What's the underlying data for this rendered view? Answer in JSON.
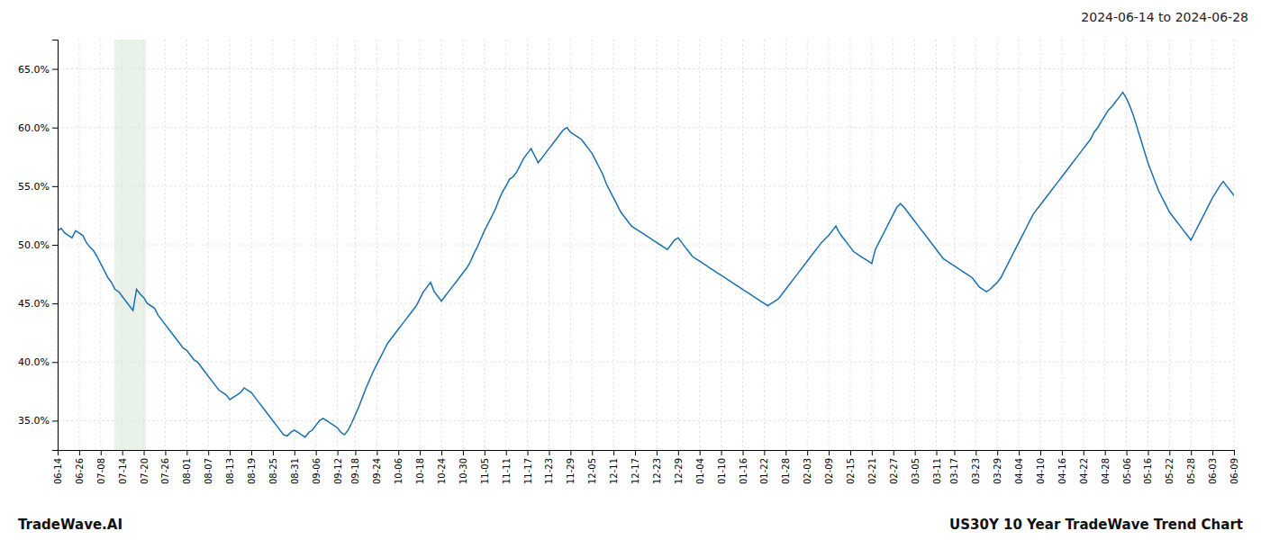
{
  "chart_data": {
    "type": "line",
    "title": "2024-06-14 to 2024-06-28",
    "annotations": [
      "TradeWave.AI",
      "US30Y 10 Year TradeWave Trend Chart"
    ],
    "color": "#1a6faf",
    "grid": true,
    "shade": {
      "start": 15.744,
      "end": 24.6,
      "color": "#d8ead8"
    },
    "ylim": [
      0.325,
      0.675
    ],
    "yticks": [
      {
        "value": 0.35,
        "label": "35.0%"
      },
      {
        "value": 0.4,
        "label": "40.0%"
      },
      {
        "value": 0.45,
        "label": "45.0%"
      },
      {
        "value": 0.5,
        "label": "50.0%"
      },
      {
        "value": 0.55,
        "label": "55.0%"
      },
      {
        "value": 0.6,
        "label": "60.0%"
      },
      {
        "value": 0.65,
        "label": "65.0%"
      }
    ],
    "categories": [
      "06-14",
      null,
      null,
      null,
      null,
      null,
      "06-26",
      null,
      null,
      null,
      null,
      null,
      "07-08",
      null,
      null,
      null,
      null,
      null,
      "07-14",
      null,
      null,
      null,
      null,
      null,
      "07-20",
      null,
      null,
      null,
      null,
      null,
      "07-26",
      null,
      null,
      null,
      null,
      null,
      "08-01",
      null,
      null,
      null,
      null,
      null,
      "08-07",
      null,
      null,
      null,
      null,
      null,
      "08-13",
      null,
      null,
      null,
      null,
      null,
      "08-19",
      null,
      null,
      null,
      null,
      null,
      "08-25",
      null,
      null,
      null,
      null,
      null,
      "08-31",
      null,
      null,
      null,
      null,
      null,
      "09-06",
      null,
      null,
      null,
      null,
      null,
      "09-12",
      null,
      null,
      null,
      null,
      "09-18",
      null,
      null,
      null,
      null,
      null,
      "09-24",
      null,
      null,
      null,
      null,
      null,
      "10-06",
      null,
      null,
      null,
      null,
      null,
      "10-18",
      null,
      null,
      null,
      null,
      null,
      "10-24",
      null,
      null,
      null,
      null,
      null,
      "10-30",
      null,
      null,
      null,
      null,
      null,
      "11-05",
      null,
      null,
      null,
      null,
      null,
      "11-11",
      null,
      null,
      null,
      null,
      null,
      "11-17",
      null,
      null,
      null,
      null,
      null,
      "11-23",
      null,
      null,
      null,
      null,
      null,
      "11-29",
      null,
      null,
      null,
      null,
      null,
      "12-05",
      null,
      null,
      null,
      null,
      null,
      "12-11",
      null,
      null,
      null,
      null,
      null,
      "12-17",
      null,
      null,
      null,
      null,
      null,
      "12-23",
      null,
      null,
      null,
      null,
      null,
      "12-29",
      null,
      null,
      null,
      null,
      null,
      "01-04",
      null,
      null,
      null,
      null,
      null,
      "01-10",
      null,
      null,
      null,
      null,
      null,
      "01-16",
      null,
      null,
      null,
      null,
      null,
      "01-22",
      null,
      null,
      null,
      null,
      null,
      "01-28",
      null,
      null,
      null,
      null,
      null,
      "02-03",
      null,
      null,
      null,
      null,
      null,
      "02-09",
      null,
      null,
      null,
      null,
      null,
      "02-15",
      null,
      null,
      null,
      null,
      null,
      "02-21",
      null,
      null,
      null,
      null,
      null,
      "02-27",
      null,
      null,
      null,
      null,
      null,
      "03-05",
      null,
      null,
      null,
      null,
      null,
      "03-11",
      null,
      null,
      null,
      null,
      "03-17",
      null,
      null,
      null,
      null,
      null,
      "03-23",
      null,
      null,
      null,
      null,
      null,
      "03-29",
      null,
      null,
      null,
      null,
      null,
      "04-04",
      null,
      null,
      null,
      null,
      null,
      "04-10",
      null,
      null,
      null,
      null,
      null,
      "04-16",
      null,
      null,
      null,
      null,
      null,
      "04-22",
      null,
      null,
      null,
      null,
      null,
      "04-28",
      null,
      null,
      null,
      null,
      null,
      "05-06",
      null,
      null,
      null,
      null,
      null,
      "05-16",
      null,
      null,
      null,
      null,
      null,
      "05-22",
      null,
      null,
      null,
      null,
      null,
      "05-28",
      null,
      null,
      null,
      null,
      null,
      "06-03",
      null,
      null,
      null,
      null,
      null,
      "06-09"
    ],
    "values": [
      0.512,
      0.514,
      0.51,
      0.508,
      0.506,
      0.512,
      0.51,
      0.508,
      0.502,
      0.498,
      0.495,
      0.49,
      0.484,
      0.478,
      0.472,
      0.468,
      0.462,
      0.46,
      0.456,
      0.452,
      0.448,
      0.444,
      0.462,
      0.458,
      0.455,
      0.45,
      0.448,
      0.446,
      0.44,
      0.436,
      0.432,
      0.428,
      0.424,
      0.42,
      0.416,
      0.412,
      0.41,
      0.406,
      0.402,
      0.4,
      0.396,
      0.392,
      0.388,
      0.384,
      0.38,
      0.376,
      0.374,
      0.372,
      0.368,
      0.37,
      0.372,
      0.374,
      0.378,
      0.376,
      0.374,
      0.37,
      0.366,
      0.362,
      0.358,
      0.354,
      0.35,
      0.346,
      0.342,
      0.338,
      0.337,
      0.34,
      0.342,
      0.34,
      0.338,
      0.336,
      0.34,
      0.342,
      0.346,
      0.35,
      0.352,
      0.35,
      0.348,
      0.346,
      0.344,
      0.34,
      0.338,
      0.342,
      0.348,
      0.355,
      0.362,
      0.37,
      0.378,
      0.385,
      0.392,
      0.398,
      0.404,
      0.41,
      0.416,
      0.42,
      0.424,
      0.428,
      0.432,
      0.436,
      0.44,
      0.444,
      0.448,
      0.454,
      0.46,
      0.464,
      0.468,
      0.46,
      0.456,
      0.452,
      0.456,
      0.46,
      0.464,
      0.468,
      0.472,
      0.476,
      0.48,
      0.485,
      0.492,
      0.498,
      0.505,
      0.512,
      0.518,
      0.524,
      0.53,
      0.538,
      0.545,
      0.55,
      0.556,
      0.558,
      0.562,
      0.568,
      0.574,
      0.578,
      0.582,
      0.576,
      0.57,
      0.574,
      0.578,
      0.582,
      0.586,
      0.59,
      0.594,
      0.598,
      0.6,
      0.596,
      0.594,
      0.592,
      0.59,
      0.586,
      0.582,
      0.578,
      0.572,
      0.566,
      0.56,
      0.552,
      0.546,
      0.54,
      0.534,
      0.528,
      0.524,
      0.52,
      0.516,
      0.514,
      0.512,
      0.51,
      0.508,
      0.506,
      0.504,
      0.502,
      0.5,
      0.498,
      0.496,
      0.5,
      0.504,
      0.506,
      0.502,
      0.498,
      0.494,
      0.49,
      0.488,
      0.486,
      0.484,
      0.482,
      0.48,
      0.478,
      0.476,
      0.474,
      0.472,
      0.47,
      0.468,
      0.466,
      0.464,
      0.462,
      0.46,
      0.458,
      0.456,
      0.454,
      0.452,
      0.45,
      0.448,
      0.45,
      0.452,
      0.454,
      0.458,
      0.462,
      0.466,
      0.47,
      0.474,
      0.478,
      0.482,
      0.486,
      0.49,
      0.494,
      0.498,
      0.502,
      0.505,
      0.508,
      0.512,
      0.516,
      0.51,
      0.506,
      0.502,
      0.498,
      0.494,
      0.492,
      0.49,
      0.488,
      0.486,
      0.484,
      0.496,
      0.502,
      0.508,
      0.514,
      0.52,
      0.526,
      0.532,
      0.535,
      0.532,
      0.528,
      0.524,
      0.52,
      0.516,
      0.512,
      0.508,
      0.504,
      0.5,
      0.496,
      0.492,
      0.488,
      0.486,
      0.484,
      0.482,
      0.48,
      0.478,
      0.476,
      0.474,
      0.472,
      0.468,
      0.464,
      0.462,
      0.46,
      0.462,
      0.465,
      0.468,
      0.472,
      0.478,
      0.484,
      0.49,
      0.496,
      0.502,
      0.508,
      0.514,
      0.52,
      0.526,
      0.53,
      0.534,
      0.538,
      0.542,
      0.546,
      0.55,
      0.554,
      0.558,
      0.562,
      0.566,
      0.57,
      0.574,
      0.578,
      0.582,
      0.586,
      0.59,
      0.596,
      0.6,
      0.605,
      0.61,
      0.615,
      0.618,
      0.622,
      0.626,
      0.63,
      0.625,
      0.618,
      0.61,
      0.6,
      0.59,
      0.58,
      0.57,
      0.562,
      0.554,
      0.546,
      0.54,
      0.534,
      0.528,
      0.524,
      0.52,
      0.516,
      0.512,
      0.508,
      0.504,
      0.51,
      0.516,
      0.522,
      0.528,
      0.534,
      0.54,
      0.545,
      0.55,
      0.554,
      0.55,
      0.546,
      0.542
    ]
  }
}
